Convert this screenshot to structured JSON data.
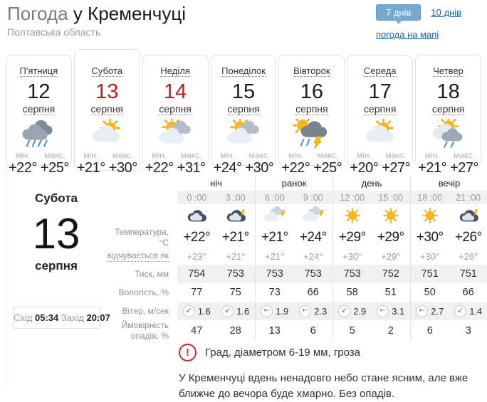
{
  "header": {
    "title_prefix": "Погода",
    "title_city": "у Кременчуці",
    "region": "Полтавська область",
    "tabs": {
      "days7": "7 днів",
      "days10": "10 днів",
      "map": "погода на мапі"
    }
  },
  "labels": {
    "min": "мін.",
    "max": "макс."
  },
  "day_cards": [
    {
      "name": "П'ятниця",
      "day": "12",
      "month": "серпня",
      "icon": "icon-rain",
      "min": "+22°",
      "max": "+25°"
    },
    {
      "name": "Субота",
      "day": "13",
      "month": "серпня",
      "icon": "icon-sun-cloud",
      "min": "+21°",
      "max": "+30°"
    },
    {
      "name": "Неділя",
      "day": "14",
      "month": "серпня",
      "icon": "icon-sun-clouds",
      "min": "+22°",
      "max": "+31°"
    },
    {
      "name": "Понеділок",
      "day": "15",
      "month": "серпня",
      "icon": "icon-sun-clouds",
      "min": "+24°",
      "max": "+30°"
    },
    {
      "name": "Вівторок",
      "day": "16",
      "month": "серпня",
      "icon": "icon-storm",
      "min": "+22°",
      "max": "+25°"
    },
    {
      "name": "Середа",
      "day": "17",
      "month": "серпня",
      "icon": "icon-sun-cloud",
      "min": "+20°",
      "max": "+27°"
    },
    {
      "name": "Четвер",
      "day": "18",
      "month": "серпня",
      "icon": "icon-sun-rain",
      "min": "+21°",
      "max": "+27°"
    }
  ],
  "selected_day": {
    "name": "Субота",
    "day": "13",
    "month": "серпня",
    "sunrise_label": "Схід",
    "sunrise": "05:34",
    "sunset_label": "Захід",
    "sunset": "20:07"
  },
  "forecast_table": {
    "groups": [
      "ніч",
      "ранок",
      "день",
      "вечір"
    ],
    "hours": [
      "0 :00",
      "3 :00",
      "6 :00",
      "9 :00",
      "12 :00",
      "15 :00",
      "18 :00",
      "21 :00"
    ],
    "icons": [
      "icon-night-cloud",
      "icon-night-bolt",
      "icon-clouds-bolt",
      "icon-clouds-bolt",
      "icon-sun",
      "icon-sun",
      "icon-sun",
      "icon-night-bolt"
    ],
    "row_labels": {
      "temp": "Температура, °C",
      "feels": "відчувається як",
      "pressure": "Тиск, мм",
      "humidity": "Вологість, %",
      "wind": "Вітер, м/сек",
      "precip": "Ймовірність\nопадів, %"
    },
    "temperature": [
      "+22°",
      "+21°",
      "+21°",
      "+24°",
      "+29°",
      "+29°",
      "+30°",
      "+26°"
    ],
    "feels_like": [
      "+23°",
      "+21°",
      "+21°",
      "+24°",
      "+30°",
      "+29°",
      "+30°",
      "+26°"
    ],
    "pressure": [
      "754",
      "753",
      "753",
      "753",
      "753",
      "752",
      "751",
      "751"
    ],
    "humidity": [
      "77",
      "75",
      "73",
      "66",
      "58",
      "51",
      "50",
      "66"
    ],
    "wind_dirs": [
      "↙",
      "↙",
      "←",
      "←",
      "↙",
      "←",
      "←",
      "↙"
    ],
    "wind_speeds": [
      "1.6",
      "1.6",
      "1.9",
      "2.3",
      "2.9",
      "3.1",
      "2.7",
      "1.4"
    ],
    "precipitation": [
      "47",
      "28",
      "13",
      "6",
      "5",
      "2",
      "6",
      "3"
    ]
  },
  "alerts": {
    "warning_mark": "!",
    "warning": "Град, діаметром 6-19 мм, гроза",
    "summary": "У Кременчуці вдень ненадовго небо стане ясним, але вже ближче до вечора буде хмарно. Без опадів."
  },
  "colors": {
    "accent": "#74a9d1",
    "link": "#0b66ad",
    "weekend": "#b22222",
    "stripe": "#f1f1f1"
  }
}
